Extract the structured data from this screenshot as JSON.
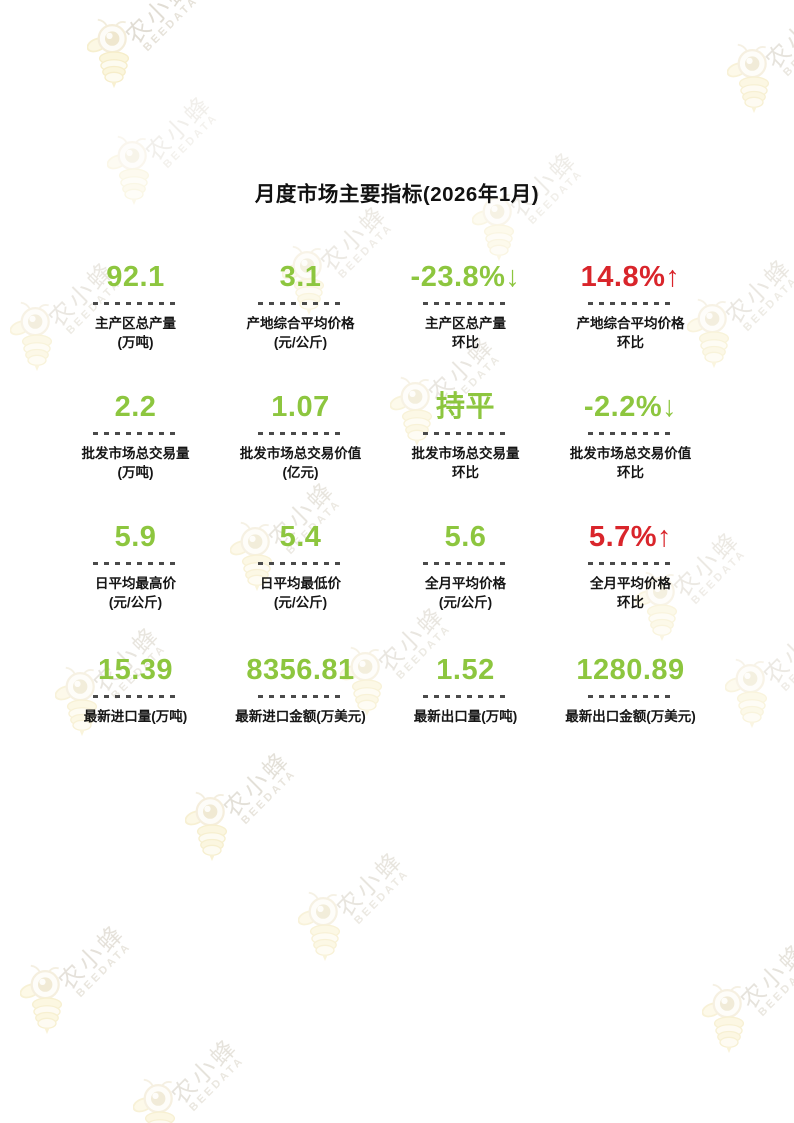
{
  "title": "月度市场主要指标(2026年1月)",
  "colors": {
    "green": "#8DC63F",
    "red": "#D9252B",
    "label": "#151515"
  },
  "watermark": {
    "cn": "农小蜂",
    "en": "BEEDATA"
  },
  "metrics": [
    {
      "value": "92.1",
      "color": "green",
      "label": "主产区总产量",
      "unit": "(万吨)"
    },
    {
      "value": "3.1",
      "color": "green",
      "label": "产地综合平均价格",
      "unit": "(元/公斤)"
    },
    {
      "value": "-23.8%↓",
      "color": "green",
      "label": "主产区总产量",
      "unit": "环比"
    },
    {
      "value": "14.8%↑",
      "color": "red",
      "label": "产地综合平均价格",
      "unit": "环比"
    },
    {
      "value": "2.2",
      "color": "green",
      "label": "批发市场总交易量",
      "unit": "(万吨)"
    },
    {
      "value": "1.07",
      "color": "green",
      "label": "批发市场总交易价值",
      "unit": "(亿元)"
    },
    {
      "value": "持平",
      "color": "green",
      "label": "批发市场总交易量",
      "unit": "环比"
    },
    {
      "value": "-2.2%↓",
      "color": "green",
      "label": "批发市场总交易价值",
      "unit": "环比"
    },
    {
      "value": "5.9",
      "color": "green",
      "label": "日平均最高价",
      "unit": "(元/公斤)"
    },
    {
      "value": "5.4",
      "color": "green",
      "label": "日平均最低价",
      "unit": "(元/公斤)"
    },
    {
      "value": "5.6",
      "color": "green",
      "label": "全月平均价格",
      "unit": "(元/公斤)"
    },
    {
      "value": "5.7%↑",
      "color": "red",
      "label": "全月平均价格",
      "unit": "环比"
    },
    {
      "value": "15.39",
      "color": "green",
      "label": "最新进口量(万吨)",
      "unit": ""
    },
    {
      "value": "8356.81",
      "color": "green",
      "label": "最新进口金额(万美元)",
      "unit": ""
    },
    {
      "value": "1.52",
      "color": "green",
      "label": "最新出口量(万吨)",
      "unit": ""
    },
    {
      "value": "1280.89",
      "color": "green",
      "label": "最新出口金额(万美元)",
      "unit": ""
    }
  ]
}
